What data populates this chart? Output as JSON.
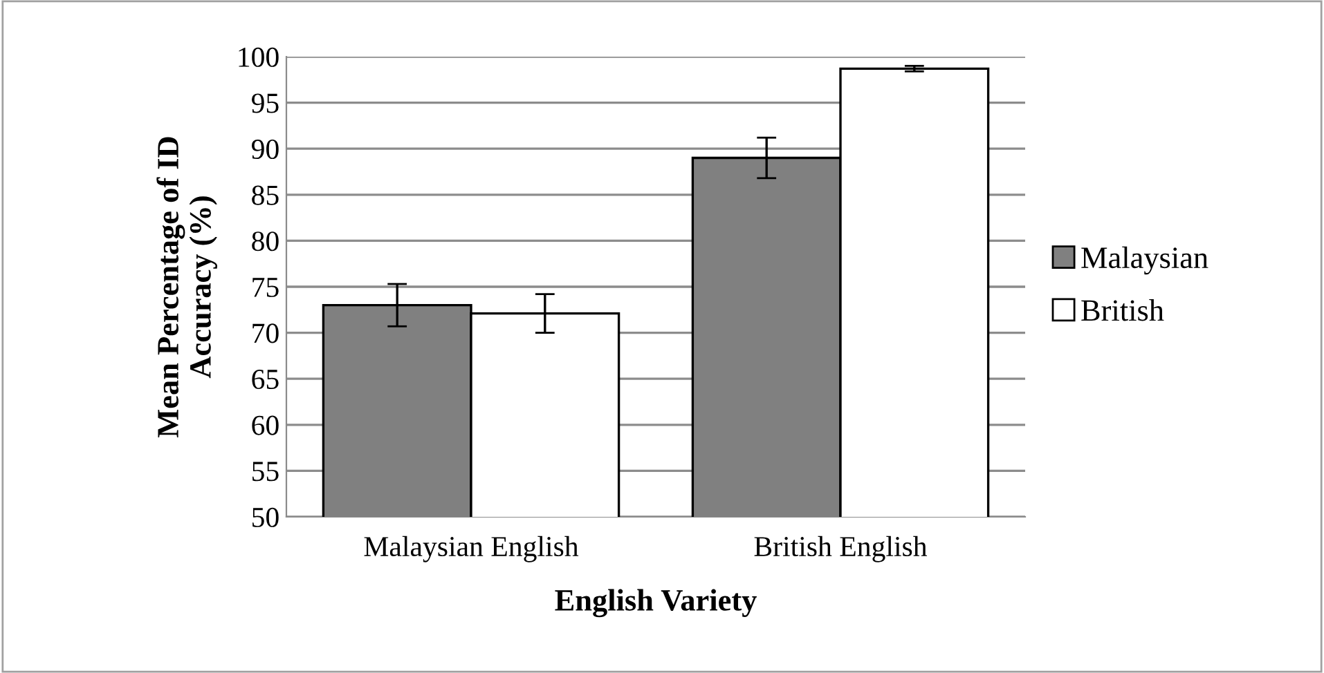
{
  "chart_data": {
    "type": "bar",
    "xlabel": "English Variety",
    "ylabel": "Mean Percentage of ID\nAccuracy (%)",
    "categories": [
      "Malaysian English",
      "British English"
    ],
    "series": [
      {
        "name": "Malaysian",
        "color": "#808080",
        "values": [
          73.0,
          89.0
        ],
        "errors": [
          2.3,
          2.2
        ]
      },
      {
        "name": "British",
        "color": "#ffffff",
        "values": [
          72.1,
          98.7
        ],
        "errors": [
          2.1,
          0.3
        ]
      }
    ],
    "ylim": [
      50,
      100
    ],
    "yticks": [
      50,
      55,
      60,
      65,
      70,
      75,
      80,
      85,
      90,
      95,
      100
    ],
    "grid": "y",
    "legend": "right"
  }
}
